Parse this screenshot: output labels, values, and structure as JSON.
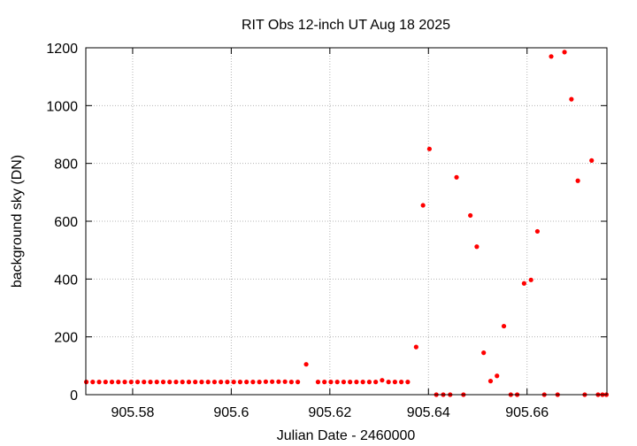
{
  "chart_data": {
    "type": "scatter",
    "title": "RIT Obs 12-inch UT Aug 18 2025",
    "xlabel": "Julian Date - 2460000",
    "ylabel": "background sky (DN)",
    "xlim": [
      905.5705,
      905.6762
    ],
    "ylim": [
      0,
      1200
    ],
    "xticks": [
      905.58,
      905.6,
      905.62,
      905.64,
      905.66
    ],
    "xtick_labels": [
      "905.58",
      "905.6",
      "905.62",
      "905.64",
      "905.66"
    ],
    "yticks": [
      0,
      200,
      400,
      600,
      800,
      1000,
      1200
    ],
    "ytick_labels": [
      "0",
      "200",
      "400",
      "600",
      "800",
      "1000",
      "1200"
    ],
    "grid": true,
    "marker_color": "#ff0000",
    "series": [
      {
        "points": [
          [
            905.5706,
            44
          ],
          [
            905.5719,
            44
          ],
          [
            905.5732,
            44
          ],
          [
            905.5745,
            44
          ],
          [
            905.5758,
            44
          ],
          [
            905.5771,
            44
          ],
          [
            905.5784,
            44
          ],
          [
            905.5797,
            44
          ],
          [
            905.581,
            44
          ],
          [
            905.5823,
            44
          ],
          [
            905.5836,
            44
          ],
          [
            905.5849,
            44
          ],
          [
            905.5862,
            44
          ],
          [
            905.5875,
            44
          ],
          [
            905.5888,
            44
          ],
          [
            905.5901,
            44
          ],
          [
            905.5914,
            44
          ],
          [
            905.5927,
            44
          ],
          [
            905.594,
            44
          ],
          [
            905.5953,
            44
          ],
          [
            905.5966,
            44
          ],
          [
            905.5979,
            44
          ],
          [
            905.5992,
            44
          ],
          [
            905.6005,
            44
          ],
          [
            905.6018,
            44
          ],
          [
            905.6031,
            44
          ],
          [
            905.6044,
            44
          ],
          [
            905.6057,
            44
          ],
          [
            905.607,
            45
          ],
          [
            905.6083,
            45
          ],
          [
            905.6096,
            45
          ],
          [
            905.6109,
            45
          ],
          [
            905.6122,
            44
          ],
          [
            905.6135,
            44
          ],
          [
            905.6152,
            105
          ],
          [
            905.6176,
            44
          ],
          [
            905.6189,
            44
          ],
          [
            905.6202,
            44
          ],
          [
            905.6215,
            44
          ],
          [
            905.6228,
            44
          ],
          [
            905.6241,
            44
          ],
          [
            905.6254,
            44
          ],
          [
            905.6267,
            44
          ],
          [
            905.628,
            44
          ],
          [
            905.6293,
            44
          ],
          [
            905.6306,
            50
          ],
          [
            905.6319,
            44
          ],
          [
            905.6332,
            44
          ],
          [
            905.6345,
            44
          ],
          [
            905.6358,
            44
          ],
          [
            905.6375,
            165
          ],
          [
            905.6389,
            655
          ],
          [
            905.6402,
            850
          ],
          [
            905.6416,
            0
          ],
          [
            905.643,
            0
          ],
          [
            905.6444,
            0
          ],
          [
            905.6457,
            752
          ],
          [
            905.6471,
            0
          ],
          [
            905.6485,
            620
          ],
          [
            905.6498,
            512
          ],
          [
            905.6512,
            145
          ],
          [
            905.6526,
            47
          ],
          [
            905.6539,
            65
          ],
          [
            905.6553,
            237
          ],
          [
            905.6567,
            0
          ],
          [
            905.658,
            0
          ],
          [
            905.6594,
            385
          ],
          [
            905.6608,
            397
          ],
          [
            905.6621,
            565
          ],
          [
            905.6635,
            0
          ],
          [
            905.6649,
            1170
          ],
          [
            905.6662,
            0
          ],
          [
            905.6676,
            1185
          ],
          [
            905.669,
            1022
          ],
          [
            905.6703,
            740
          ],
          [
            905.6717,
            0
          ],
          [
            905.6731,
            810
          ],
          [
            905.6744,
            0
          ],
          [
            905.6753,
            0
          ],
          [
            905.6761,
            0
          ]
        ]
      }
    ]
  }
}
